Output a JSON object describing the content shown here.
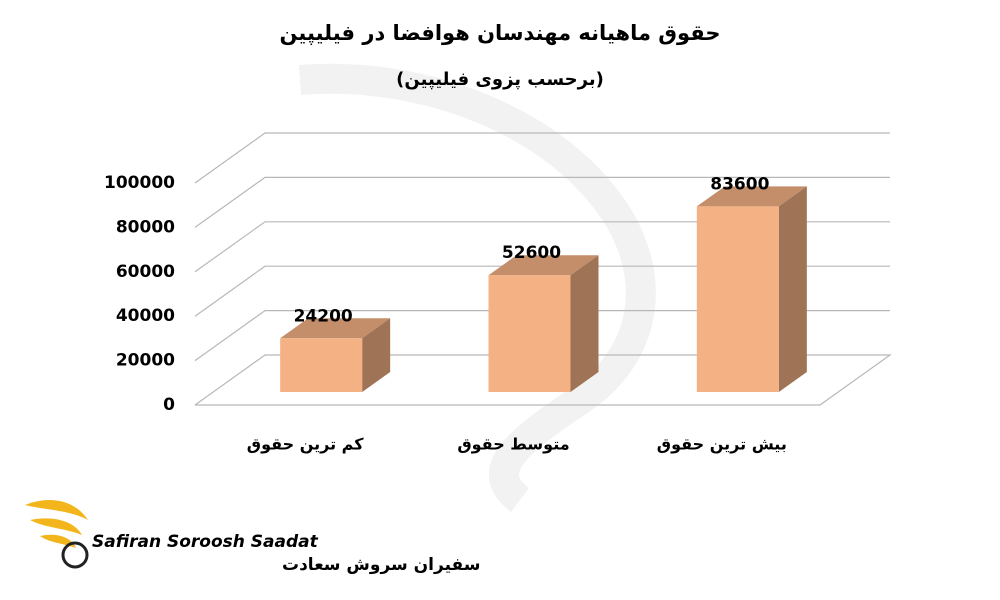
{
  "chart_data": {
    "type": "bar3d",
    "title": "حقوق ماهیانه مهندسان هوافضا در فیلیپین",
    "subtitle": "(برحسب پزوی فیلیپین)",
    "categories": [
      "کم ترین حقوق",
      "متوسط حقوق",
      "بیش ترین حقوق"
    ],
    "values": [
      24200,
      52600,
      83600
    ],
    "color": "#f4b183",
    "ylim": [
      0,
      100000
    ],
    "yticks": [
      0,
      20000,
      40000,
      60000,
      80000,
      100000
    ],
    "grid": true
  },
  "logo": {
    "latin": "Safiran Soroosh Saadat",
    "persian": "سفیران سروش سعادت"
  }
}
